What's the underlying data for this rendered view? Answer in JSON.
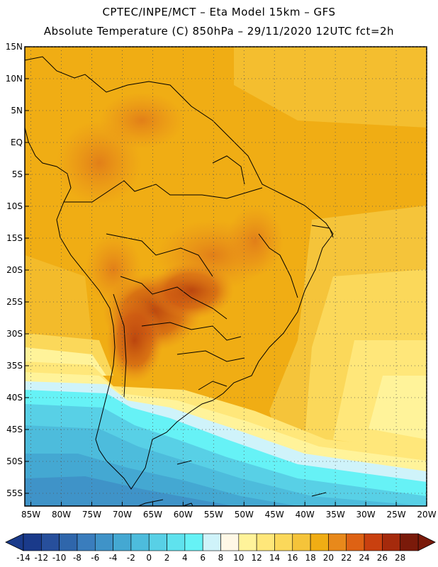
{
  "header": {
    "line1": "CPTEC/INPE/MCT –  Eta Model 15km – GFS",
    "line2": "Absolute Temperature (C) 850hPa – 29/11/2020 12UTC fct=2h"
  },
  "map": {
    "lat_labels": [
      "15N",
      "10N",
      "5N",
      "EQ",
      "5S",
      "10S",
      "15S",
      "20S",
      "25S",
      "30S",
      "35S",
      "40S",
      "45S",
      "50S",
      "55S"
    ],
    "lon_labels": [
      "85W",
      "80W",
      "75W",
      "70W",
      "65W",
      "60W",
      "55W",
      "50W",
      "45W",
      "40W",
      "35W",
      "30W",
      "25W",
      "20W"
    ],
    "lat_range": [
      15,
      -57
    ],
    "lon_range": [
      -86,
      -20
    ]
  },
  "colorbar": {
    "labels": [
      "-14",
      "-12",
      "-10",
      "-8",
      "-6",
      "-4",
      "-2",
      "0",
      "2",
      "4",
      "6",
      "8",
      "10",
      "12",
      "14",
      "16",
      "18",
      "20",
      "22",
      "24",
      "26",
      "28"
    ],
    "colors": [
      "#1a3a8a",
      "#274f9c",
      "#2f66ab",
      "#3a7dbd",
      "#3f93c8",
      "#44a8d2",
      "#4dbcdc",
      "#58d0e6",
      "#5fe2ee",
      "#66f2f6",
      "#cff3fa",
      "#fff8e6",
      "#fff39a",
      "#ffe77a",
      "#fbd85a",
      "#f5c43a",
      "#f0ad14",
      "#e8891b",
      "#de6214",
      "#c9400f",
      "#a52a0c",
      "#7a1a0a"
    ]
  }
}
